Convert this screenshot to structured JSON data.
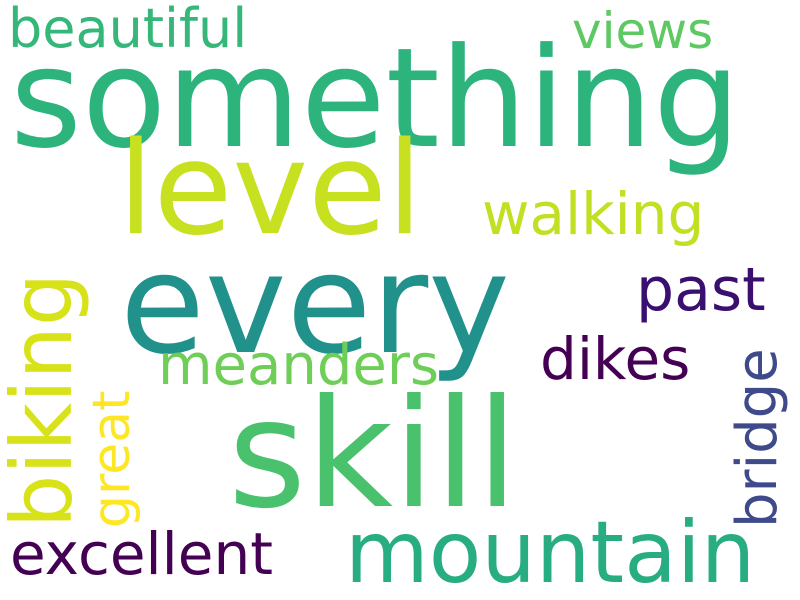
{
  "words": {
    "something": {
      "text": "something",
      "color": "#2db37c"
    },
    "level": {
      "text": "level",
      "color": "#c7e020"
    },
    "every": {
      "text": "every",
      "color": "#21918c"
    },
    "skill": {
      "text": "skill",
      "color": "#4ac16d"
    },
    "mountain": {
      "text": "mountain",
      "color": "#27ad81"
    },
    "excellent": {
      "text": "excellent",
      "color": "#440154"
    },
    "beautiful": {
      "text": "beautiful",
      "color": "#35b779"
    },
    "views": {
      "text": "views",
      "color": "#5ec962"
    },
    "walking": {
      "text": "walking",
      "color": "#c2df23"
    },
    "past": {
      "text": "past",
      "color": "#3b0f70"
    },
    "meanders": {
      "text": "meanders",
      "color": "#6ece58"
    },
    "dikes": {
      "text": "dikes",
      "color": "#440154"
    },
    "biking": {
      "text": "biking",
      "color": "#d8e219"
    },
    "great": {
      "text": "great",
      "color": "#fde725"
    },
    "bridge": {
      "text": "bridge",
      "color": "#3e4a89"
    }
  }
}
